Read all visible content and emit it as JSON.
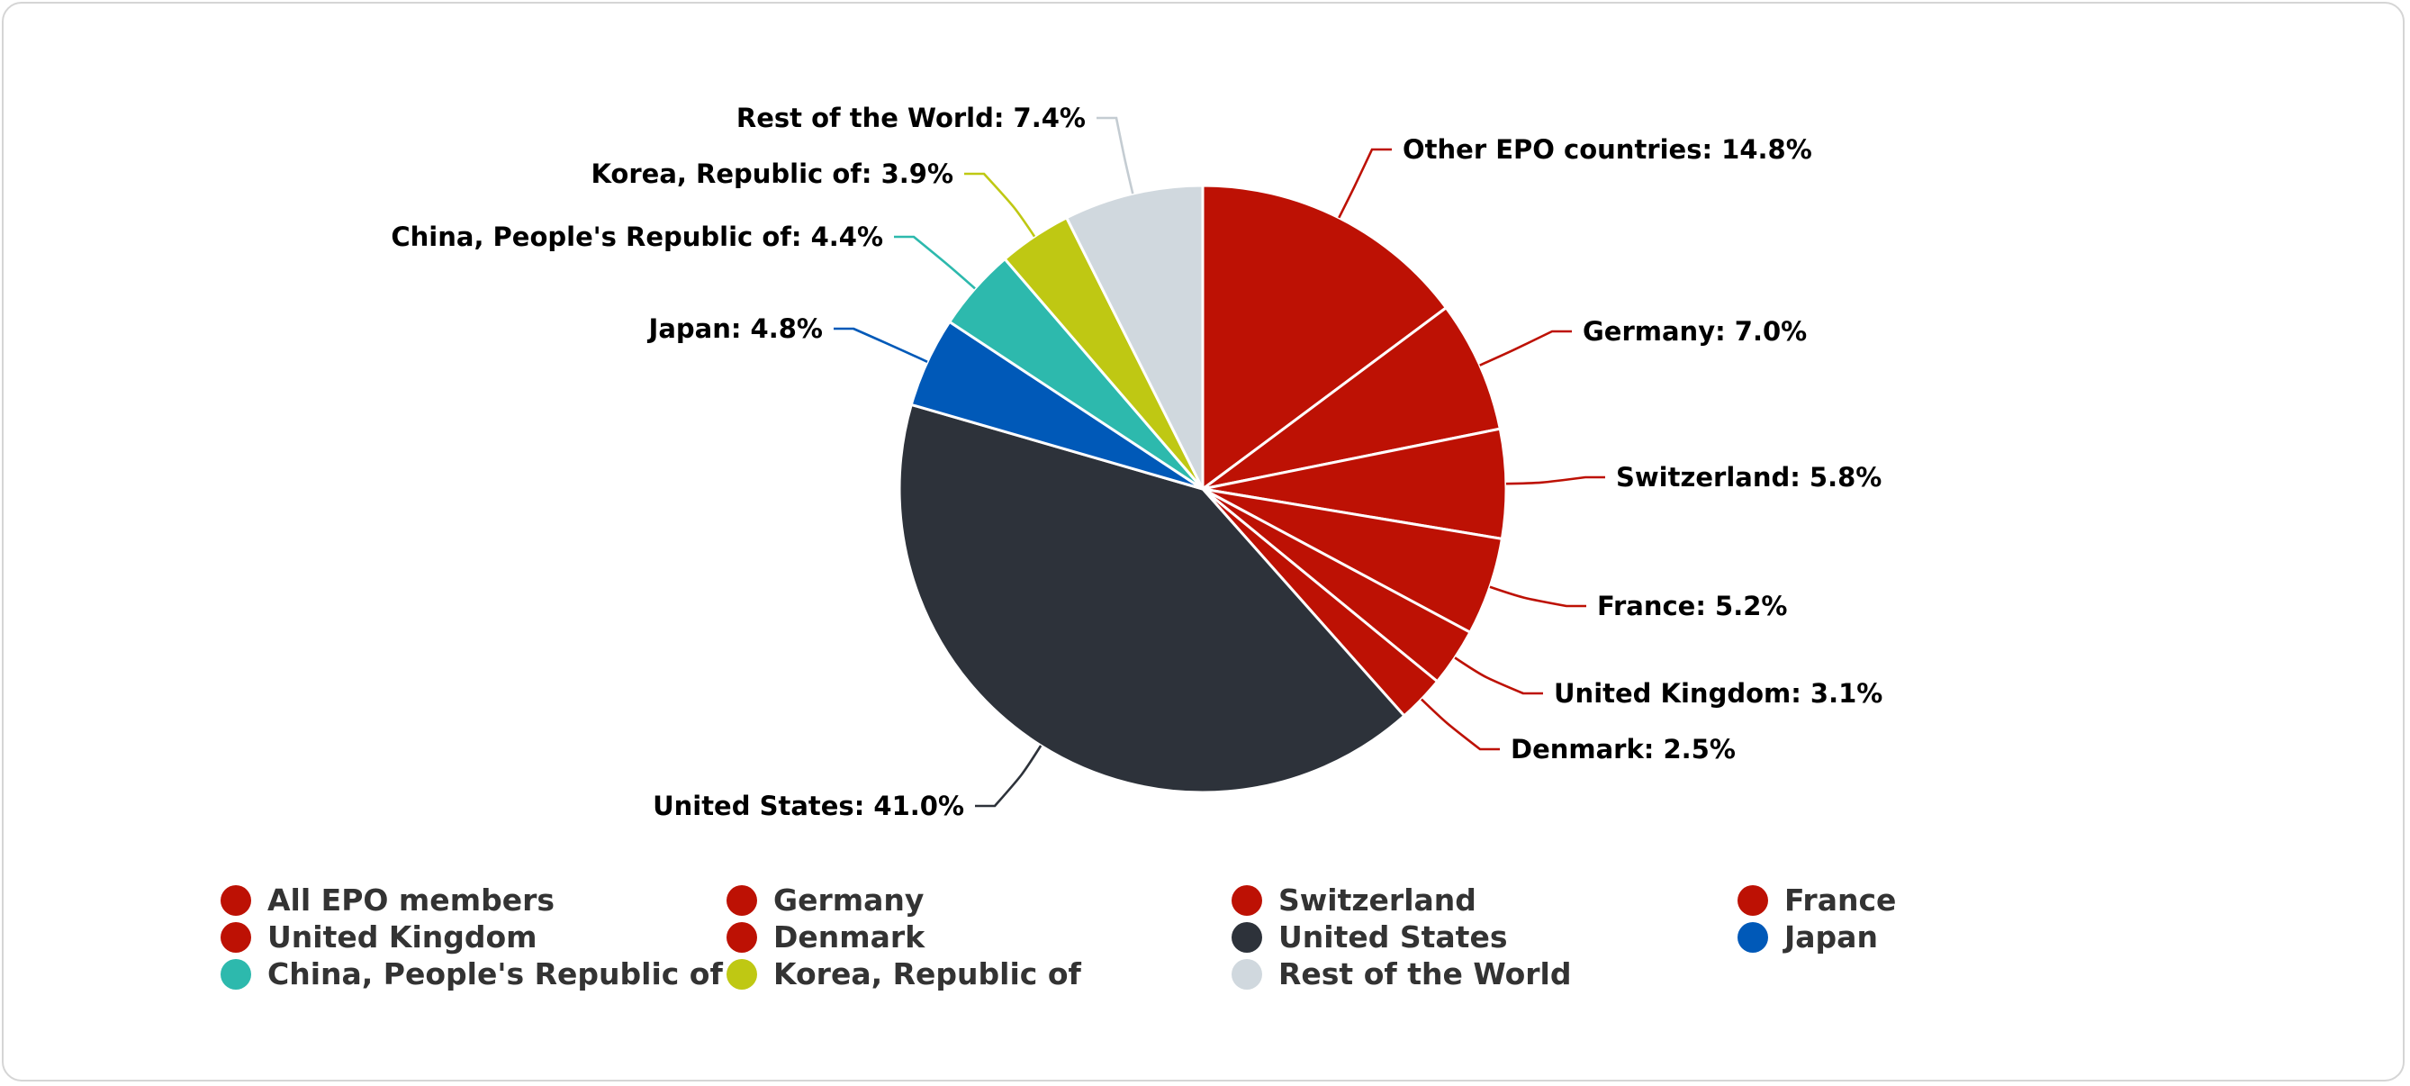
{
  "chart_data": {
    "type": "pie",
    "title": "",
    "slices": [
      {
        "label": "Other EPO countries",
        "data_label": "Other EPO countries: 14.8%",
        "value": 14.8,
        "color": "#bd1104"
      },
      {
        "label": "Germany",
        "data_label": "Germany: 7.0%",
        "value": 7.0,
        "color": "#bd1104"
      },
      {
        "label": "Switzerland",
        "data_label": "Switzerland: 5.8%",
        "value": 5.8,
        "color": "#bd1104"
      },
      {
        "label": "France",
        "data_label": "France: 5.2%",
        "value": 5.2,
        "color": "#bd1104"
      },
      {
        "label": "United Kingdom",
        "data_label": "United Kingdom: 3.1%",
        "value": 3.1,
        "color": "#bd1104"
      },
      {
        "label": "Denmark",
        "data_label": "Denmark: 2.5%",
        "value": 2.5,
        "color": "#bd1104"
      },
      {
        "label": "United States",
        "data_label": "United States: 41.0%",
        "value": 41.0,
        "color": "#2d323a"
      },
      {
        "label": "Japan",
        "data_label": "Japan: 4.8%",
        "value": 4.8,
        "color": "#0059b8"
      },
      {
        "label": "China, People's Republic of",
        "data_label": "China, People's Republic of: 4.4%",
        "value": 4.4,
        "color": "#2db9ad"
      },
      {
        "label": "Korea, Republic of",
        "data_label": "Korea, Republic of: 3.9%",
        "value": 3.9,
        "color": "#bfc813"
      },
      {
        "label": "Rest of the World",
        "data_label": "Rest of the World: 7.4%",
        "value": 7.4,
        "color": "#d0d8de"
      }
    ],
    "legend": {
      "placement": "bottom",
      "items": [
        {
          "label": "All EPO members",
          "color": "#bd1104"
        },
        {
          "label": "Germany",
          "color": "#bd1104"
        },
        {
          "label": "Switzerland",
          "color": "#bd1104"
        },
        {
          "label": "France",
          "color": "#bd1104"
        },
        {
          "label": "United Kingdom",
          "color": "#bd1104"
        },
        {
          "label": "Denmark",
          "color": "#bd1104"
        },
        {
          "label": "United States",
          "color": "#2d323a"
        },
        {
          "label": "Japan",
          "color": "#0059b8"
        },
        {
          "label": "China, People's Republic of",
          "color": "#2db9ad"
        },
        {
          "label": "Korea, Republic of",
          "color": "#bfc813"
        },
        {
          "label": "Rest of the World",
          "color": "#d0d8de"
        }
      ]
    }
  }
}
